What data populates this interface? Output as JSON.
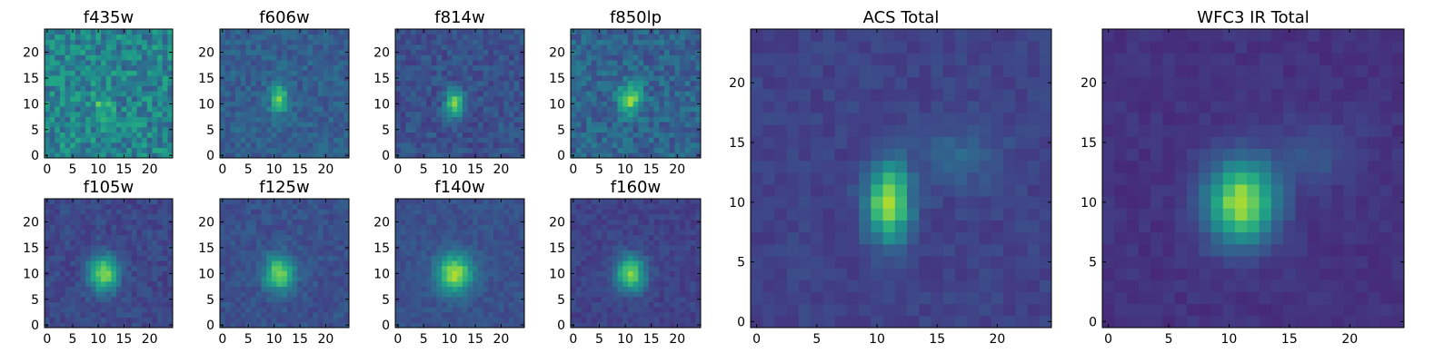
{
  "chart_data": {
    "type": "heatmap",
    "colormap": "viridis",
    "grid": false,
    "colors": {
      "low": "#440154",
      "mid": "#21918c",
      "high": "#fde725"
    },
    "panels": [
      {
        "title": "f435w",
        "xticks": [
          "0",
          "5",
          "10",
          "15",
          "20"
        ],
        "yticks": [
          "0",
          "5",
          "10",
          "15",
          "20"
        ],
        "xlim": [
          0,
          24
        ],
        "ylim": [
          0,
          24
        ],
        "peak": [
          11,
          10
        ],
        "sigma": [
          1.2,
          1.8
        ],
        "amp": 0.25,
        "noise": 0.32,
        "base": 0.45
      },
      {
        "title": "f606w",
        "xticks": [
          "0",
          "5",
          "10",
          "15",
          "20"
        ],
        "yticks": [
          "0",
          "5",
          "10",
          "15",
          "20"
        ],
        "xlim": [
          0,
          24
        ],
        "ylim": [
          0,
          24
        ],
        "peak": [
          11,
          11
        ],
        "sigma": [
          1.2,
          2.0
        ],
        "amp": 0.45,
        "noise": 0.16,
        "base": 0.3
      },
      {
        "title": "f814w",
        "xticks": [
          "0",
          "5",
          "10",
          "15",
          "20"
        ],
        "yticks": [
          "0",
          "5",
          "10",
          "15",
          "20"
        ],
        "xlim": [
          0,
          24
        ],
        "ylim": [
          0,
          24
        ],
        "peak": [
          11,
          10
        ],
        "sigma": [
          1.2,
          1.8
        ],
        "amp": 0.55,
        "noise": 0.16,
        "base": 0.25
      },
      {
        "title": "f850lp",
        "xticks": [
          "0",
          "5",
          "10",
          "15",
          "20"
        ],
        "yticks": [
          "0",
          "5",
          "10",
          "15",
          "20"
        ],
        "xlim": [
          0,
          24
        ],
        "ylim": [
          0,
          24
        ],
        "peak": [
          11,
          11
        ],
        "sigma": [
          1.6,
          2.0
        ],
        "amp": 0.5,
        "noise": 0.22,
        "base": 0.32
      },
      {
        "title": "f105w",
        "xticks": [
          "0",
          "5",
          "10",
          "15",
          "20"
        ],
        "yticks": [
          "0",
          "5",
          "10",
          "15",
          "20"
        ],
        "xlim": [
          0,
          24
        ],
        "ylim": [
          0,
          24
        ],
        "peak": [
          11,
          10
        ],
        "sigma": [
          2.0,
          2.4
        ],
        "amp": 0.6,
        "noise": 0.12,
        "base": 0.22
      },
      {
        "title": "f125w",
        "xticks": [
          "0",
          "5",
          "10",
          "15",
          "20"
        ],
        "yticks": [
          "0",
          "5",
          "10",
          "15",
          "20"
        ],
        "xlim": [
          0,
          24
        ],
        "ylim": [
          0,
          24
        ],
        "peak": [
          11,
          10
        ],
        "sigma": [
          2.0,
          2.4
        ],
        "amp": 0.55,
        "noise": 0.12,
        "base": 0.25
      },
      {
        "title": "f140w",
        "xticks": [
          "0",
          "5",
          "10",
          "15",
          "20"
        ],
        "yticks": [
          "0",
          "5",
          "10",
          "15",
          "20"
        ],
        "xlim": [
          0,
          24
        ],
        "ylim": [
          0,
          24
        ],
        "peak": [
          11,
          10
        ],
        "sigma": [
          2.4,
          2.6
        ],
        "amp": 0.62,
        "noise": 0.1,
        "base": 0.25
      },
      {
        "title": "f160w",
        "xticks": [
          "0",
          "5",
          "10",
          "15",
          "20"
        ],
        "yticks": [
          "0",
          "5",
          "10",
          "15",
          "20"
        ],
        "xlim": [
          0,
          24
        ],
        "ylim": [
          0,
          24
        ],
        "peak": [
          11,
          10
        ],
        "sigma": [
          2.0,
          2.4
        ],
        "amp": 0.6,
        "noise": 0.1,
        "base": 0.2
      },
      {
        "title": "ACS Total",
        "xticks": [
          "0",
          "5",
          "10",
          "15",
          "20"
        ],
        "yticks": [
          "0",
          "5",
          "10",
          "15",
          "20"
        ],
        "xlim": [
          0,
          24
        ],
        "ylim": [
          0,
          24
        ],
        "peak": [
          11,
          10
        ],
        "sigma": [
          1.2,
          2.2
        ],
        "amp": 0.7,
        "noise": 0.08,
        "base": 0.2
      },
      {
        "title": "WFC3 IR Total",
        "xticks": [
          "0",
          "5",
          "10",
          "15",
          "20"
        ],
        "yticks": [
          "0",
          "5",
          "10",
          "15",
          "20"
        ],
        "xlim": [
          0,
          24
        ],
        "ylim": [
          0,
          24
        ],
        "peak": [
          11,
          10
        ],
        "sigma": [
          2.0,
          2.4
        ],
        "amp": 0.72,
        "noise": 0.06,
        "base": 0.15
      }
    ]
  }
}
